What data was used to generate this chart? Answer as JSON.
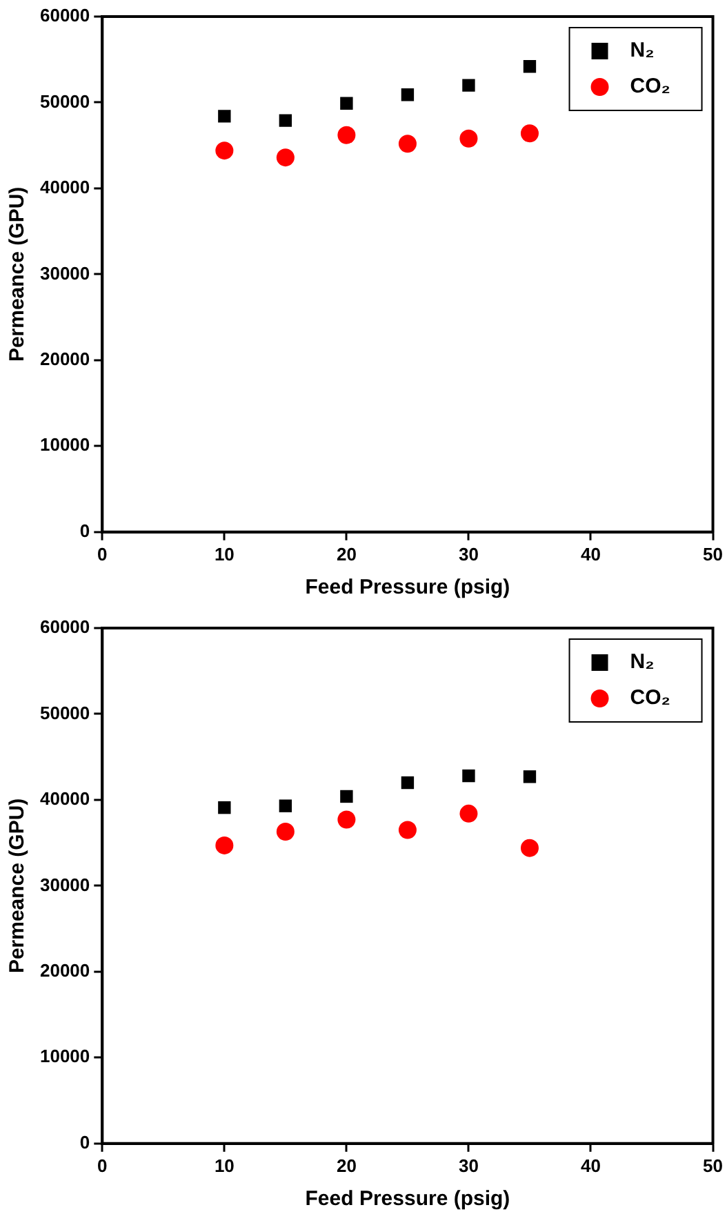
{
  "chart_data": [
    {
      "type": "scatter",
      "xlabel": "Feed Pressure (psig)",
      "ylabel": "Permeance (GPU)",
      "x": [
        10,
        15,
        20,
        25,
        30,
        35
      ],
      "xlim": [
        0,
        50
      ],
      "xticks": [
        0,
        10,
        20,
        30,
        40,
        50
      ],
      "ylim": [
        0,
        60000
      ],
      "yticks": [
        0,
        10000,
        20000,
        30000,
        40000,
        50000,
        60000
      ],
      "grid": false,
      "legend": "top right",
      "series": [
        {
          "name": "N₂",
          "color": "#000000",
          "marker": "square",
          "values": [
            48400,
            47900,
            49900,
            50900,
            52000,
            54200
          ]
        },
        {
          "name": "CO₂",
          "color": "#ff0000",
          "marker": "circle",
          "values": [
            44400,
            43600,
            46200,
            45200,
            45800,
            46400
          ]
        }
      ]
    },
    {
      "type": "scatter",
      "xlabel": "Feed Pressure (psig)",
      "ylabel": "Permeance (GPU)",
      "x": [
        10,
        15,
        20,
        25,
        30,
        35
      ],
      "xlim": [
        0,
        50
      ],
      "xticks": [
        0,
        10,
        20,
        30,
        40,
        50
      ],
      "ylim": [
        0,
        60000
      ],
      "yticks": [
        0,
        10000,
        20000,
        30000,
        40000,
        50000,
        60000
      ],
      "grid": false,
      "legend": "top right",
      "series": [
        {
          "name": "N₂",
          "color": "#000000",
          "marker": "square",
          "values": [
            39100,
            39300,
            40400,
            42000,
            42800,
            42700
          ]
        },
        {
          "name": "CO₂",
          "color": "#ff0000",
          "marker": "circle",
          "values": [
            34700,
            36300,
            37700,
            36500,
            38400,
            34400
          ]
        }
      ]
    }
  ]
}
